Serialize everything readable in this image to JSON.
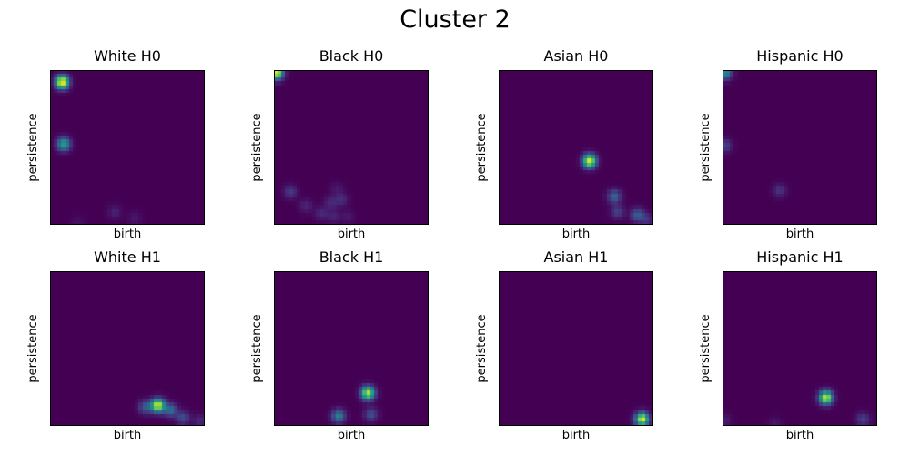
{
  "title": "Cluster 2",
  "colors": {
    "background": "#440154",
    "peak": "#fde725"
  },
  "chart_data": [
    {
      "type": "heatmap",
      "title": "White H0",
      "xlabel": "birth",
      "ylabel": "persistence",
      "xlim": [
        0,
        1
      ],
      "ylim": [
        0,
        1
      ],
      "peaks": [
        {
          "x": 0.08,
          "y": 0.92,
          "intensity": 1.0
        },
        {
          "x": 0.09,
          "y": 0.52,
          "intensity": 0.55
        },
        {
          "x": 0.42,
          "y": 0.08,
          "intensity": 0.1
        },
        {
          "x": 0.55,
          "y": 0.04,
          "intensity": 0.07
        },
        {
          "x": 0.18,
          "y": 0.01,
          "intensity": 0.05
        }
      ]
    },
    {
      "type": "heatmap",
      "title": "Black H0",
      "xlabel": "birth",
      "ylabel": "persistence",
      "xlim": [
        0,
        1
      ],
      "ylim": [
        0,
        1
      ],
      "peaks": [
        {
          "x": 0.02,
          "y": 0.98,
          "intensity": 1.0
        },
        {
          "x": 0.11,
          "y": 0.21,
          "intensity": 0.17
        },
        {
          "x": 0.21,
          "y": 0.12,
          "intensity": 0.11
        },
        {
          "x": 0.31,
          "y": 0.07,
          "intensity": 0.12
        },
        {
          "x": 0.37,
          "y": 0.14,
          "intensity": 0.12
        },
        {
          "x": 0.39,
          "y": 0.05,
          "intensity": 0.1
        },
        {
          "x": 0.44,
          "y": 0.16,
          "intensity": 0.13
        },
        {
          "x": 0.41,
          "y": 0.23,
          "intensity": 0.07
        },
        {
          "x": 0.48,
          "y": 0.05,
          "intensity": 0.07
        }
      ]
    },
    {
      "type": "heatmap",
      "title": "Asian H0",
      "xlabel": "birth",
      "ylabel": "persistence",
      "xlim": [
        0,
        1
      ],
      "ylim": [
        0,
        1
      ],
      "peaks": [
        {
          "x": 0.59,
          "y": 0.41,
          "intensity": 0.95
        },
        {
          "x": 0.75,
          "y": 0.18,
          "intensity": 0.35
        },
        {
          "x": 0.77,
          "y": 0.08,
          "intensity": 0.2
        },
        {
          "x": 0.9,
          "y": 0.06,
          "intensity": 0.3
        },
        {
          "x": 0.96,
          "y": 0.03,
          "intensity": 0.15
        }
      ]
    },
    {
      "type": "heatmap",
      "title": "Hispanic H0",
      "xlabel": "birth",
      "ylabel": "persistence",
      "xlim": [
        0,
        1
      ],
      "ylim": [
        0,
        1
      ],
      "peaks": [
        {
          "x": 0.02,
          "y": 0.98,
          "intensity": 0.5
        },
        {
          "x": 0.02,
          "y": 0.51,
          "intensity": 0.2
        },
        {
          "x": 0.37,
          "y": 0.22,
          "intensity": 0.15
        }
      ]
    },
    {
      "type": "heatmap",
      "title": "White H1",
      "xlabel": "birth",
      "ylabel": "persistence",
      "xlim": [
        0,
        1
      ],
      "ylim": [
        0,
        1
      ],
      "peaks": [
        {
          "x": 0.7,
          "y": 0.13,
          "intensity": 0.95
        },
        {
          "x": 0.78,
          "y": 0.1,
          "intensity": 0.35
        },
        {
          "x": 0.62,
          "y": 0.12,
          "intensity": 0.3
        },
        {
          "x": 0.86,
          "y": 0.05,
          "intensity": 0.25
        },
        {
          "x": 0.97,
          "y": 0.03,
          "intensity": 0.12
        }
      ]
    },
    {
      "type": "heatmap",
      "title": "Black H1",
      "xlabel": "birth",
      "ylabel": "persistence",
      "xlim": [
        0,
        1
      ],
      "ylim": [
        0,
        1
      ],
      "peaks": [
        {
          "x": 0.61,
          "y": 0.21,
          "intensity": 0.9
        },
        {
          "x": 0.42,
          "y": 0.06,
          "intensity": 0.45
        },
        {
          "x": 0.63,
          "y": 0.07,
          "intensity": 0.25
        }
      ]
    },
    {
      "type": "heatmap",
      "title": "Asian H1",
      "xlabel": "birth",
      "ylabel": "persistence",
      "xlim": [
        0,
        1
      ],
      "ylim": [
        0,
        1
      ],
      "peaks": [
        {
          "x": 0.93,
          "y": 0.04,
          "intensity": 1.0
        }
      ]
    },
    {
      "type": "heatmap",
      "title": "Hispanic H1",
      "xlabel": "birth",
      "ylabel": "persistence",
      "xlim": [
        0,
        1
      ],
      "ylim": [
        0,
        1
      ],
      "peaks": [
        {
          "x": 0.67,
          "y": 0.18,
          "intensity": 0.95
        },
        {
          "x": 0.91,
          "y": 0.04,
          "intensity": 0.2
        },
        {
          "x": 0.34,
          "y": 0.01,
          "intensity": 0.07
        },
        {
          "x": 0.02,
          "y": 0.03,
          "intensity": 0.08
        }
      ]
    }
  ]
}
